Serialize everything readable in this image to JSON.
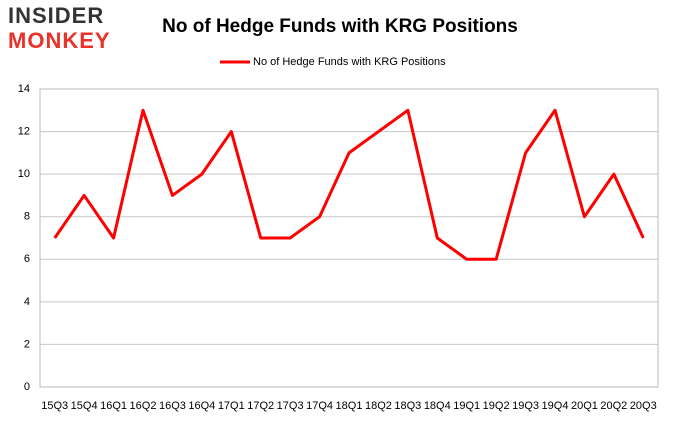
{
  "logo": {
    "line1": "INSIDER",
    "line2": "MONKEY"
  },
  "chart_data": {
    "type": "line",
    "title": "No of Hedge Funds with KRG Positions",
    "categories": [
      "15Q3",
      "15Q4",
      "16Q1",
      "16Q2",
      "16Q3",
      "16Q4",
      "17Q1",
      "17Q2",
      "17Q3",
      "17Q4",
      "18Q1",
      "18Q2",
      "18Q3",
      "18Q4",
      "19Q1",
      "19Q2",
      "19Q3",
      "19Q4",
      "20Q1",
      "20Q2",
      "20Q3"
    ],
    "series": [
      {
        "name": "No of Hedge Funds with KRG Positions",
        "color": "#ff0000",
        "values": [
          7,
          9,
          7,
          13,
          9,
          10,
          12,
          7,
          7,
          8,
          11,
          12,
          13,
          7,
          6,
          6,
          11,
          13,
          8,
          10,
          7
        ]
      }
    ],
    "ylim": [
      0,
      14
    ],
    "yticks": [
      0,
      2,
      4,
      6,
      8,
      10,
      12,
      14
    ],
    "grid": true,
    "legend": "top"
  }
}
